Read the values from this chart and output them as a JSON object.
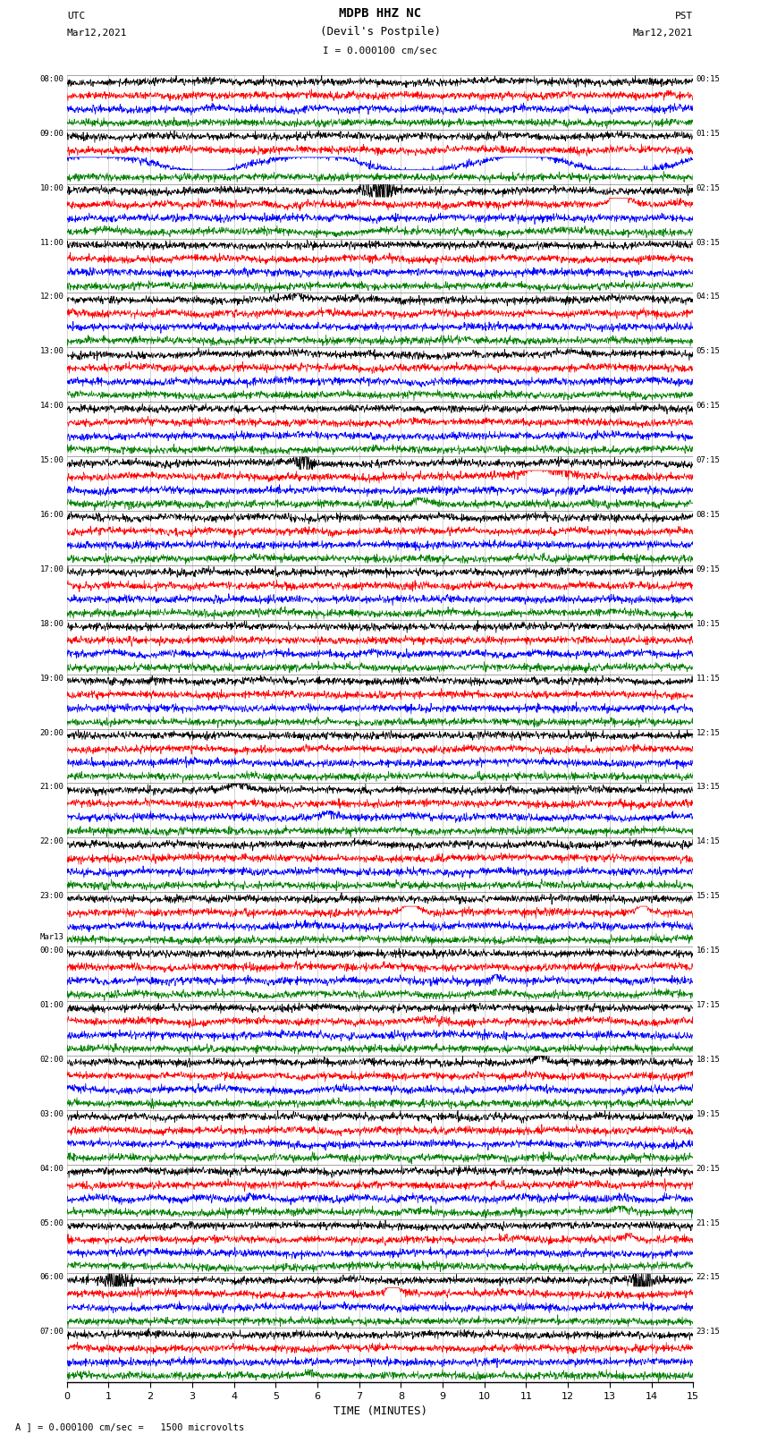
{
  "title_line1": "MDPB HHZ NC",
  "title_line2": "(Devil's Postpile)",
  "scale_text": "I = 0.000100 cm/sec",
  "footer_label": "A ] = 0.000100 cm/sec =   1500 microvolts",
  "utc_label": "UTC",
  "pst_label": "PST",
  "date_left": "Mar12,2021",
  "date_right": "Mar12,2021",
  "xlabel": "TIME (MINUTES)",
  "xlim": [
    0,
    15
  ],
  "colors": [
    "black",
    "red",
    "blue",
    "green"
  ],
  "bg_color": "white",
  "figsize": [
    8.5,
    16.13
  ],
  "dpi": 100,
  "left_time_labels": [
    [
      "08:00",
      0
    ],
    [
      "09:00",
      4
    ],
    [
      "10:00",
      8
    ],
    [
      "11:00",
      12
    ],
    [
      "12:00",
      16
    ],
    [
      "13:00",
      20
    ],
    [
      "14:00",
      24
    ],
    [
      "15:00",
      28
    ],
    [
      "16:00",
      32
    ],
    [
      "17:00",
      36
    ],
    [
      "18:00",
      40
    ],
    [
      "19:00",
      44
    ],
    [
      "20:00",
      48
    ],
    [
      "21:00",
      52
    ],
    [
      "22:00",
      56
    ],
    [
      "23:00",
      60
    ],
    [
      "Mar13",
      63
    ],
    [
      "00:00",
      64
    ],
    [
      "01:00",
      68
    ],
    [
      "02:00",
      72
    ],
    [
      "03:00",
      76
    ],
    [
      "04:00",
      80
    ],
    [
      "05:00",
      84
    ],
    [
      "06:00",
      88
    ],
    [
      "07:00",
      92
    ]
  ],
  "right_time_labels": [
    [
      "00:15",
      0
    ],
    [
      "01:15",
      4
    ],
    [
      "02:15",
      8
    ],
    [
      "03:15",
      12
    ],
    [
      "04:15",
      16
    ],
    [
      "05:15",
      20
    ],
    [
      "06:15",
      24
    ],
    [
      "07:15",
      28
    ],
    [
      "08:15",
      32
    ],
    [
      "09:15",
      36
    ],
    [
      "10:15",
      40
    ],
    [
      "11:15",
      44
    ],
    [
      "12:15",
      48
    ],
    [
      "13:15",
      52
    ],
    [
      "14:15",
      56
    ],
    [
      "15:15",
      60
    ],
    [
      "16:15",
      64
    ],
    [
      "17:15",
      68
    ],
    [
      "18:15",
      72
    ],
    [
      "19:15",
      76
    ],
    [
      "20:15",
      80
    ],
    [
      "21:15",
      84
    ],
    [
      "22:15",
      88
    ],
    [
      "23:15",
      92
    ]
  ],
  "n_rows": 96,
  "n_groups": 24,
  "rows_per_group": 4
}
